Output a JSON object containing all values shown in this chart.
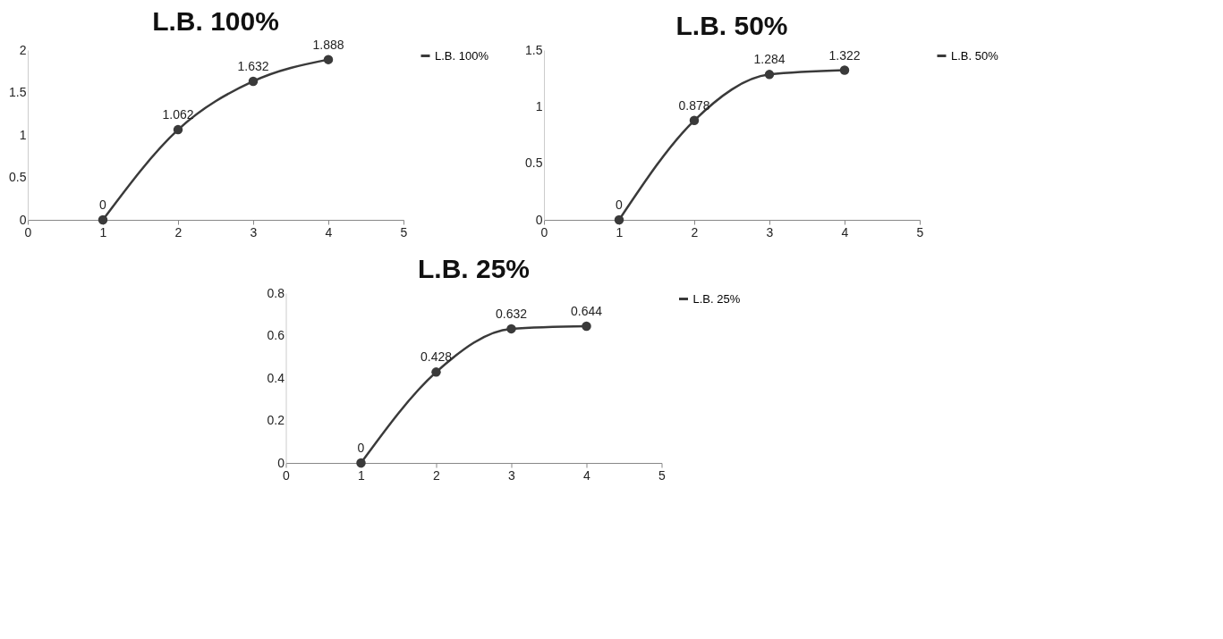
{
  "chart_data": [
    {
      "type": "line",
      "title": "L.B. 100%",
      "x": [
        1,
        2,
        3,
        4
      ],
      "series": [
        {
          "name": "L.B. 100%",
          "color": "#3a3a3a",
          "values": [
            0,
            1.062,
            1.632,
            1.888
          ]
        }
      ],
      "xlim": [
        0,
        5
      ],
      "xticks": [
        0,
        1,
        2,
        3,
        4,
        5
      ],
      "ylim": [
        0,
        2
      ],
      "yticks": [
        0,
        0.5,
        1,
        1.5,
        2
      ],
      "data_labels": true,
      "legend": "right",
      "marker": "circle"
    },
    {
      "type": "line",
      "title": "L.B. 50%",
      "x": [
        1,
        2,
        3,
        4
      ],
      "series": [
        {
          "name": "L.B. 50%",
          "color": "#3a3a3a",
          "values": [
            0,
            0.878,
            1.284,
            1.322
          ]
        }
      ],
      "xlim": [
        0,
        5
      ],
      "xticks": [
        0,
        1,
        2,
        3,
        4,
        5
      ],
      "ylim": [
        0,
        1.5
      ],
      "yticks": [
        0,
        0.5,
        1,
        1.5
      ],
      "data_labels": true,
      "legend": "right",
      "marker": "circle"
    },
    {
      "type": "line",
      "title": "L.B. 25%",
      "x": [
        1,
        2,
        3,
        4
      ],
      "series": [
        {
          "name": "L.B. 25%",
          "color": "#3a3a3a",
          "values": [
            0,
            0.428,
            0.632,
            0.644
          ]
        }
      ],
      "xlim": [
        0,
        5
      ],
      "xticks": [
        0,
        1,
        2,
        3,
        4,
        5
      ],
      "ylim": [
        0,
        0.8
      ],
      "yticks": [
        0,
        0.2,
        0.4,
        0.6,
        0.8
      ],
      "data_labels": true,
      "legend": "right",
      "marker": "circle"
    }
  ]
}
